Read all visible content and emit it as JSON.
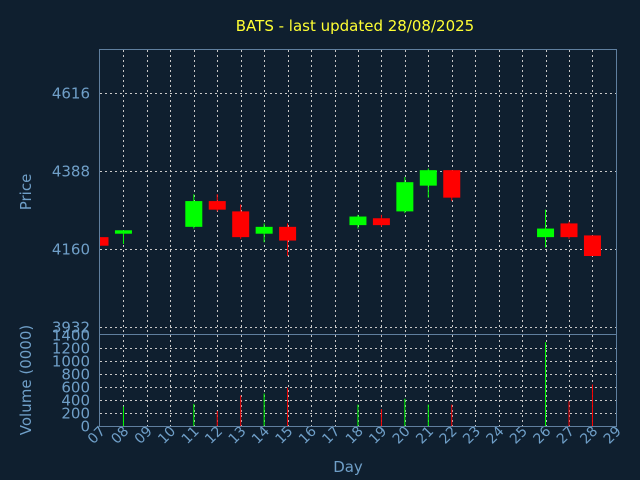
{
  "chart_data": {
    "type": "candlestick",
    "title": "BATS - last updated 28/08/2025",
    "ylabel": "Price",
    "volume_label": "Volume (0000)",
    "xlabel": "Day",
    "grid": true,
    "price_ticks": [
      "4616",
      "4388",
      "4160",
      "3932"
    ],
    "price_ylim": [
      3910,
      4740
    ],
    "volume_ticks": [
      "0",
      "200",
      "400",
      "600",
      "800",
      "1000",
      "1200",
      "1400"
    ],
    "volume_ylim": [
      0,
      1400
    ],
    "x_labels": [
      "07",
      "08",
      "09",
      "10",
      "11",
      "12",
      "13",
      "14",
      "15",
      "16",
      "17",
      "18",
      "19",
      "20",
      "21",
      "22",
      "23",
      "24",
      "25",
      "26",
      "27",
      "28",
      "29"
    ],
    "up_color": "#00ff00",
    "down_color": "#ff0000",
    "candles": [
      {
        "day": "07",
        "open": 4195,
        "high": 4195,
        "low": 4170,
        "close": 4170,
        "volume": 0
      },
      {
        "day": "08",
        "open": 4205,
        "high": 4215,
        "low": 4175,
        "close": 4215,
        "volume": 300
      },
      {
        "day": "11",
        "open": 4225,
        "high": 4320,
        "low": 4220,
        "close": 4300,
        "volume": 340
      },
      {
        "day": "12",
        "open": 4300,
        "high": 4320,
        "low": 4270,
        "close": 4275,
        "volume": 230
      },
      {
        "day": "13",
        "open": 4270,
        "high": 4290,
        "low": 4190,
        "close": 4195,
        "volume": 470
      },
      {
        "day": "14",
        "open": 4205,
        "high": 4235,
        "low": 4180,
        "close": 4225,
        "volume": 500
      },
      {
        "day": "15",
        "open": 4225,
        "high": 4235,
        "low": 4140,
        "close": 4185,
        "volume": 590
      },
      {
        "day": "18",
        "open": 4230,
        "high": 4260,
        "low": 4220,
        "close": 4255,
        "volume": 330
      },
      {
        "day": "19",
        "open": 4250,
        "high": 4260,
        "low": 4225,
        "close": 4230,
        "volume": 260
      },
      {
        "day": "20",
        "open": 4270,
        "high": 4370,
        "low": 4265,
        "close": 4355,
        "volume": 420
      },
      {
        "day": "21",
        "open": 4345,
        "high": 4395,
        "low": 4310,
        "close": 4390,
        "volume": 330
      },
      {
        "day": "22",
        "open": 4390,
        "high": 4390,
        "low": 4300,
        "close": 4310,
        "volume": 330
      },
      {
        "day": "26",
        "open": 4195,
        "high": 4275,
        "low": 4165,
        "close": 4220,
        "volume": 1290
      },
      {
        "day": "27",
        "open": 4235,
        "high": 4240,
        "low": 4190,
        "close": 4195,
        "volume": 380
      },
      {
        "day": "28",
        "open": 4200,
        "high": 4200,
        "low": 4140,
        "close": 4140,
        "volume": 640
      }
    ]
  }
}
